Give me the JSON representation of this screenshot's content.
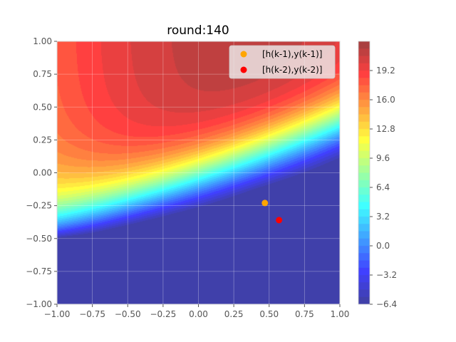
{
  "chart_data": {
    "type": "contour",
    "title": "round:140",
    "xlabel": "",
    "ylabel": "",
    "xlim": [
      -1.0,
      1.0
    ],
    "ylim": [
      -1.0,
      1.0
    ],
    "x_ticks": [
      "−1.00",
      "−0.75",
      "−0.50",
      "−0.25",
      "0.00",
      "0.25",
      "0.50",
      "0.75",
      "1.00"
    ],
    "y_ticks": [
      "−1.00",
      "−0.75",
      "−0.50",
      "−0.25",
      "0.00",
      "0.25",
      "0.50",
      "0.75",
      "1.00"
    ],
    "grid": true,
    "colormap": "jet",
    "colorbar": {
      "range": [
        -6.4,
        22.4
      ],
      "ticks": [
        "−6.4",
        "−3.2",
        "0.0",
        "3.2",
        "6.4",
        "9.6",
        "12.8",
        "16.0",
        "19.2"
      ]
    },
    "legend_position": "top-right",
    "series": [
      {
        "name": "[h(k-1),y(k-1)]",
        "color": "#ffa500",
        "points": [
          [
            0.47,
            -0.23
          ]
        ]
      },
      {
        "name": "[h(k-2),y(k-2)]",
        "color": "#ff0000",
        "points": [
          [
            0.57,
            -0.36
          ]
        ]
      }
    ]
  }
}
